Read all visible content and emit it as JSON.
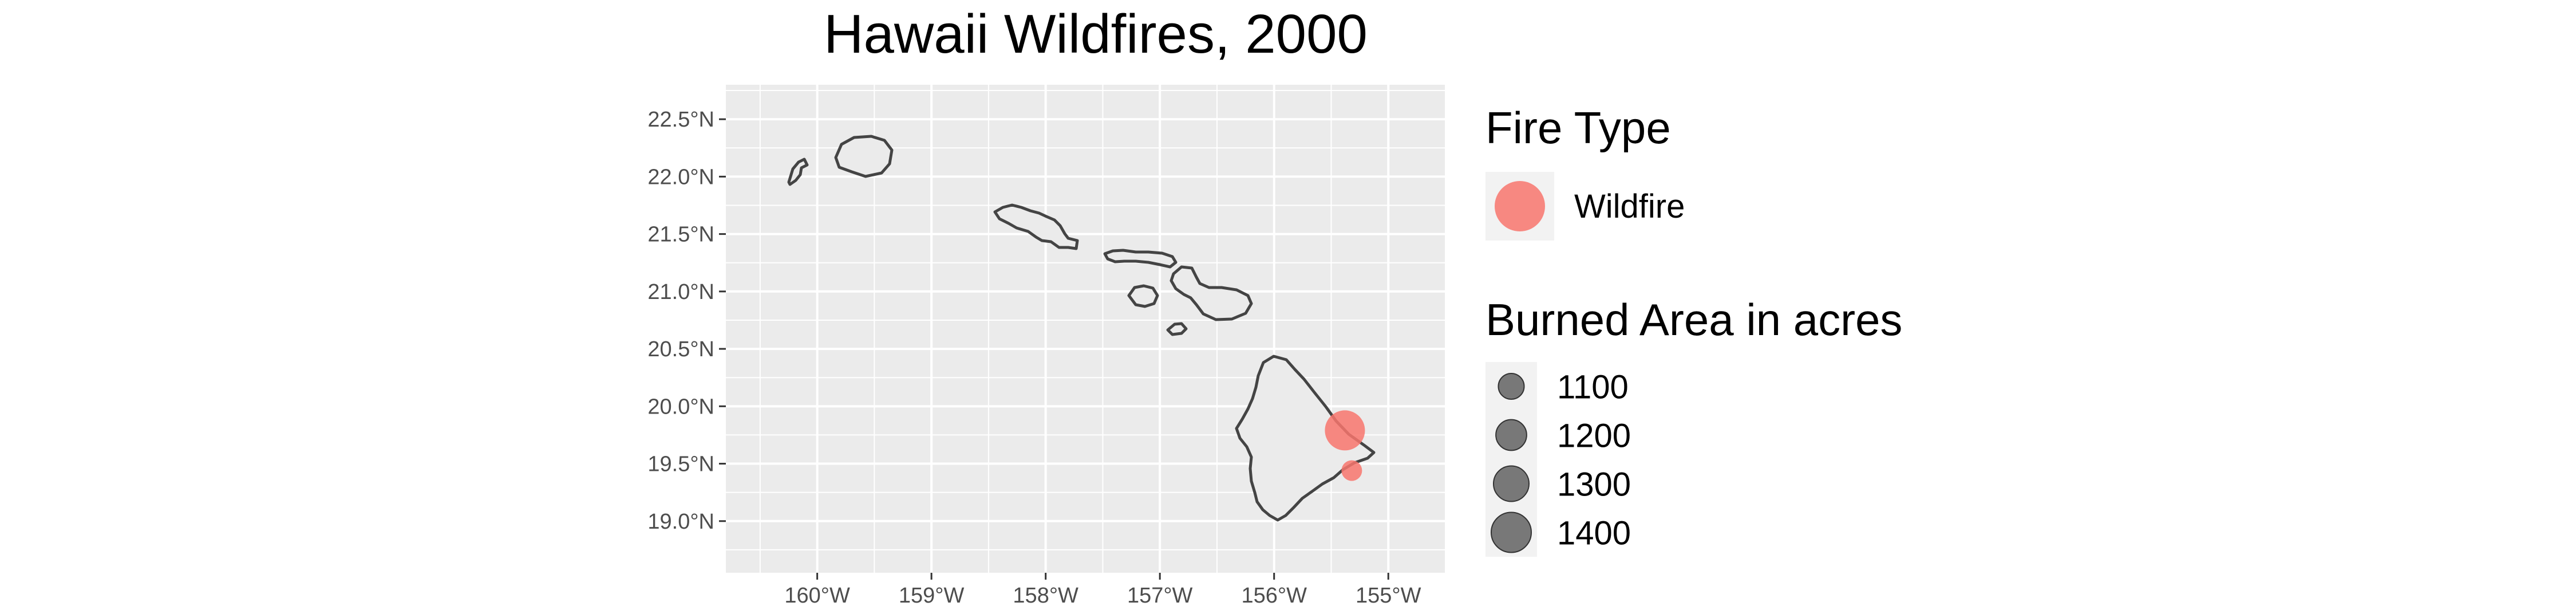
{
  "chart_data": {
    "type": "scatter",
    "title": "Hawaii Wildfires, 2000",
    "xlabel": "",
    "ylabel": "",
    "xlim": [
      -160.8,
      -154.5
    ],
    "ylim": [
      18.55,
      22.8
    ],
    "x_ticks": [
      "160°W",
      "159°W",
      "158°W",
      "157°W",
      "156°W",
      "155°W"
    ],
    "x_tick_values": [
      -160,
      -159,
      -158,
      -157,
      -156,
      -155
    ],
    "y_ticks": [
      "19.0°N",
      "19.5°N",
      "20.0°N",
      "20.5°N",
      "21.0°N",
      "21.5°N",
      "22.0°N",
      "22.5°N"
    ],
    "y_tick_values": [
      19.0,
      19.5,
      20.0,
      20.5,
      21.0,
      21.5,
      22.0,
      22.5
    ],
    "grid": true,
    "points": [
      {
        "lon": -155.38,
        "lat": 19.79,
        "acres": 1400,
        "fire_type": "Wildfire"
      },
      {
        "lon": -155.32,
        "lat": 19.44,
        "acres": 1000,
        "fire_type": "Wildfire"
      }
    ],
    "legend": {
      "placement": "right",
      "color_title": "Fire Type",
      "color_entries": [
        {
          "label": "Wildfire",
          "color": "#f8766d"
        }
      ],
      "size_title": "Burned Area in acres",
      "size_entries": [
        {
          "label": "1100",
          "value": 1100
        },
        {
          "label": "1200",
          "value": 1200
        },
        {
          "label": "1300",
          "value": 1300
        },
        {
          "label": "1400",
          "value": 1400
        }
      ]
    },
    "colors": {
      "panel_bg": "#ebebeb",
      "grid": "#ffffff",
      "land": "#ebebeb",
      "coast": "#444444",
      "point": "#f8766d",
      "size_key": "#595959",
      "key_bg": "#f2f2f2"
    }
  }
}
